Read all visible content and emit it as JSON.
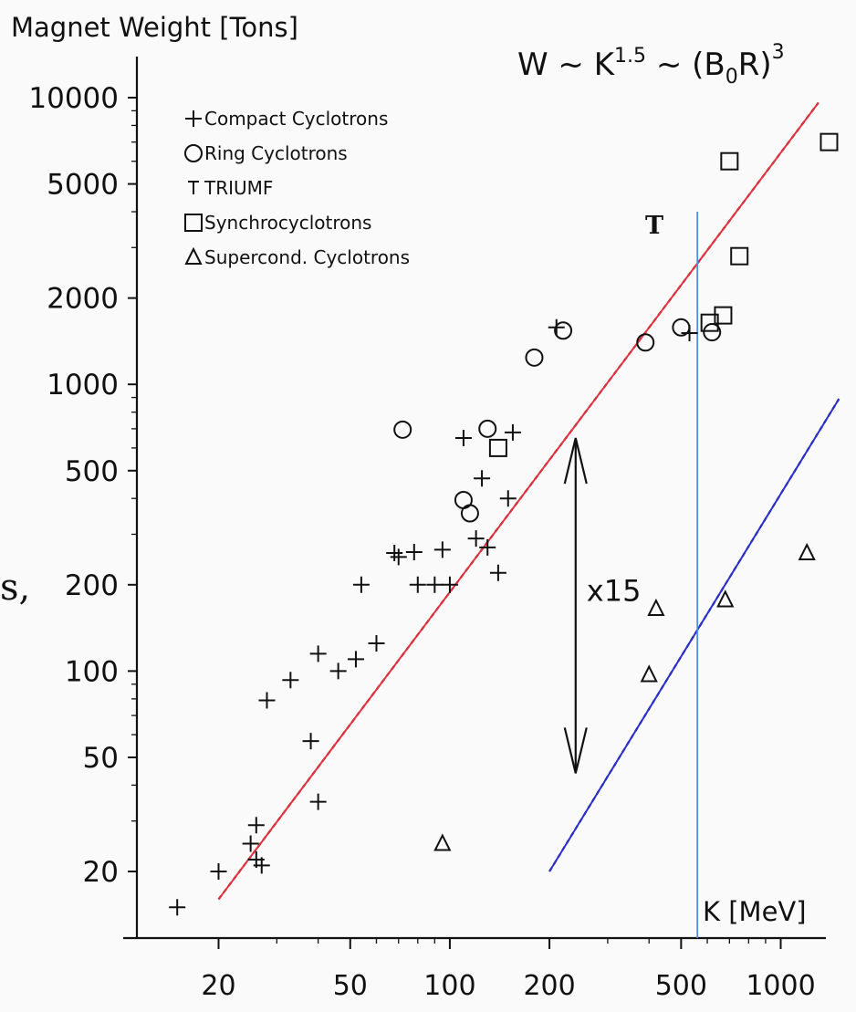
{
  "chart_data": {
    "type": "scatter",
    "title": "W ~ K^1.5 ~ (B0R)^3",
    "formula": {
      "w": "W ~ K",
      "k_exp": "1.5",
      "mid": "~ (B",
      "sub": "0",
      "r": "R)",
      "r_exp": "3"
    },
    "ylabel": "Magnet Weight [Tons]",
    "xlabel": "K [MeV]",
    "xscale": "log",
    "yscale": "log",
    "xlim": [
      11,
      2000
    ],
    "ylim": [
      12,
      13000
    ],
    "x_ticks": [
      20,
      50,
      100,
      200,
      500,
      1000
    ],
    "x_tick_labels": [
      "20",
      "50",
      "100",
      "200",
      "500",
      "1000"
    ],
    "y_ticks": [
      20,
      50,
      100,
      200,
      500,
      1000,
      2000,
      5000,
      10000
    ],
    "y_tick_labels": [
      "20",
      "50",
      "100",
      "200",
      "500",
      "1000",
      "2000",
      "5000",
      "10000"
    ],
    "grid": false,
    "legend_position": "top-left",
    "legend": [
      {
        "marker": "plus",
        "label": "Compact Cyclotrons"
      },
      {
        "marker": "circle",
        "label": "Ring Cyclotrons"
      },
      {
        "marker": "T",
        "label": "TRIUMF"
      },
      {
        "marker": "square",
        "label": "Synchrocyclotrons"
      },
      {
        "marker": "triangle",
        "label": "Supercond. Cyclotrons"
      }
    ],
    "series": [
      {
        "name": "Compact Cyclotrons",
        "marker": "plus",
        "points": [
          [
            15,
            15
          ],
          [
            20,
            20
          ],
          [
            25,
            25
          ],
          [
            26,
            22
          ],
          [
            26,
            29
          ],
          [
            27,
            21
          ],
          [
            28,
            79
          ],
          [
            33,
            93
          ],
          [
            38,
            57
          ],
          [
            40,
            35
          ],
          [
            40,
            115
          ],
          [
            46,
            100
          ],
          [
            52,
            110
          ],
          [
            54,
            200
          ],
          [
            60,
            125
          ],
          [
            68,
            258
          ],
          [
            70,
            250
          ],
          [
            78,
            260
          ],
          [
            80,
            200
          ],
          [
            90,
            200
          ],
          [
            95,
            265
          ],
          [
            100,
            200
          ],
          [
            110,
            650
          ],
          [
            120,
            290
          ],
          [
            125,
            470
          ],
          [
            130,
            270
          ],
          [
            140,
            220
          ],
          [
            150,
            400
          ],
          [
            155,
            680
          ],
          [
            210,
            1580
          ],
          [
            530,
            1510
          ]
        ]
      },
      {
        "name": "Ring Cyclotrons",
        "marker": "circle",
        "points": [
          [
            72,
            695
          ],
          [
            110,
            395
          ],
          [
            115,
            355
          ],
          [
            130,
            700
          ],
          [
            180,
            1240
          ],
          [
            220,
            1540
          ],
          [
            390,
            1400
          ],
          [
            500,
            1580
          ],
          [
            620,
            1520
          ]
        ]
      },
      {
        "name": "Synchrocyclotrons",
        "marker": "square",
        "points": [
          [
            140,
            600
          ],
          [
            610,
            1640
          ],
          [
            670,
            1740
          ],
          [
            700,
            6000
          ],
          [
            750,
            2800
          ],
          [
            1400,
            7000
          ]
        ]
      },
      {
        "name": "TRIUMF",
        "marker": "T",
        "points": [
          [
            520,
            2540
          ]
        ]
      },
      {
        "name": "Supercond. Cyclotrons",
        "marker": "triangle",
        "points": [
          [
            95,
            25
          ],
          [
            400,
            97
          ],
          [
            420,
            165
          ],
          [
            680,
            177
          ],
          [
            1200,
            258
          ]
        ]
      }
    ],
    "fit_lines": [
      {
        "color": "#e8303e",
        "from": [
          20,
          16
        ],
        "to": [
          1300,
          9600
        ]
      },
      {
        "color": "#2a2fd0",
        "from": [
          200,
          20
        ],
        "to": [
          1500,
          890
        ]
      }
    ],
    "vertical_line": {
      "color": "#4d8fe6",
      "x": 560
    },
    "annotation": {
      "label": "x15",
      "x": 240,
      "y_top": 650,
      "y_bottom": 44
    }
  },
  "overlay": {
    "t_marker": "T",
    "edge_fragment": "s,"
  }
}
